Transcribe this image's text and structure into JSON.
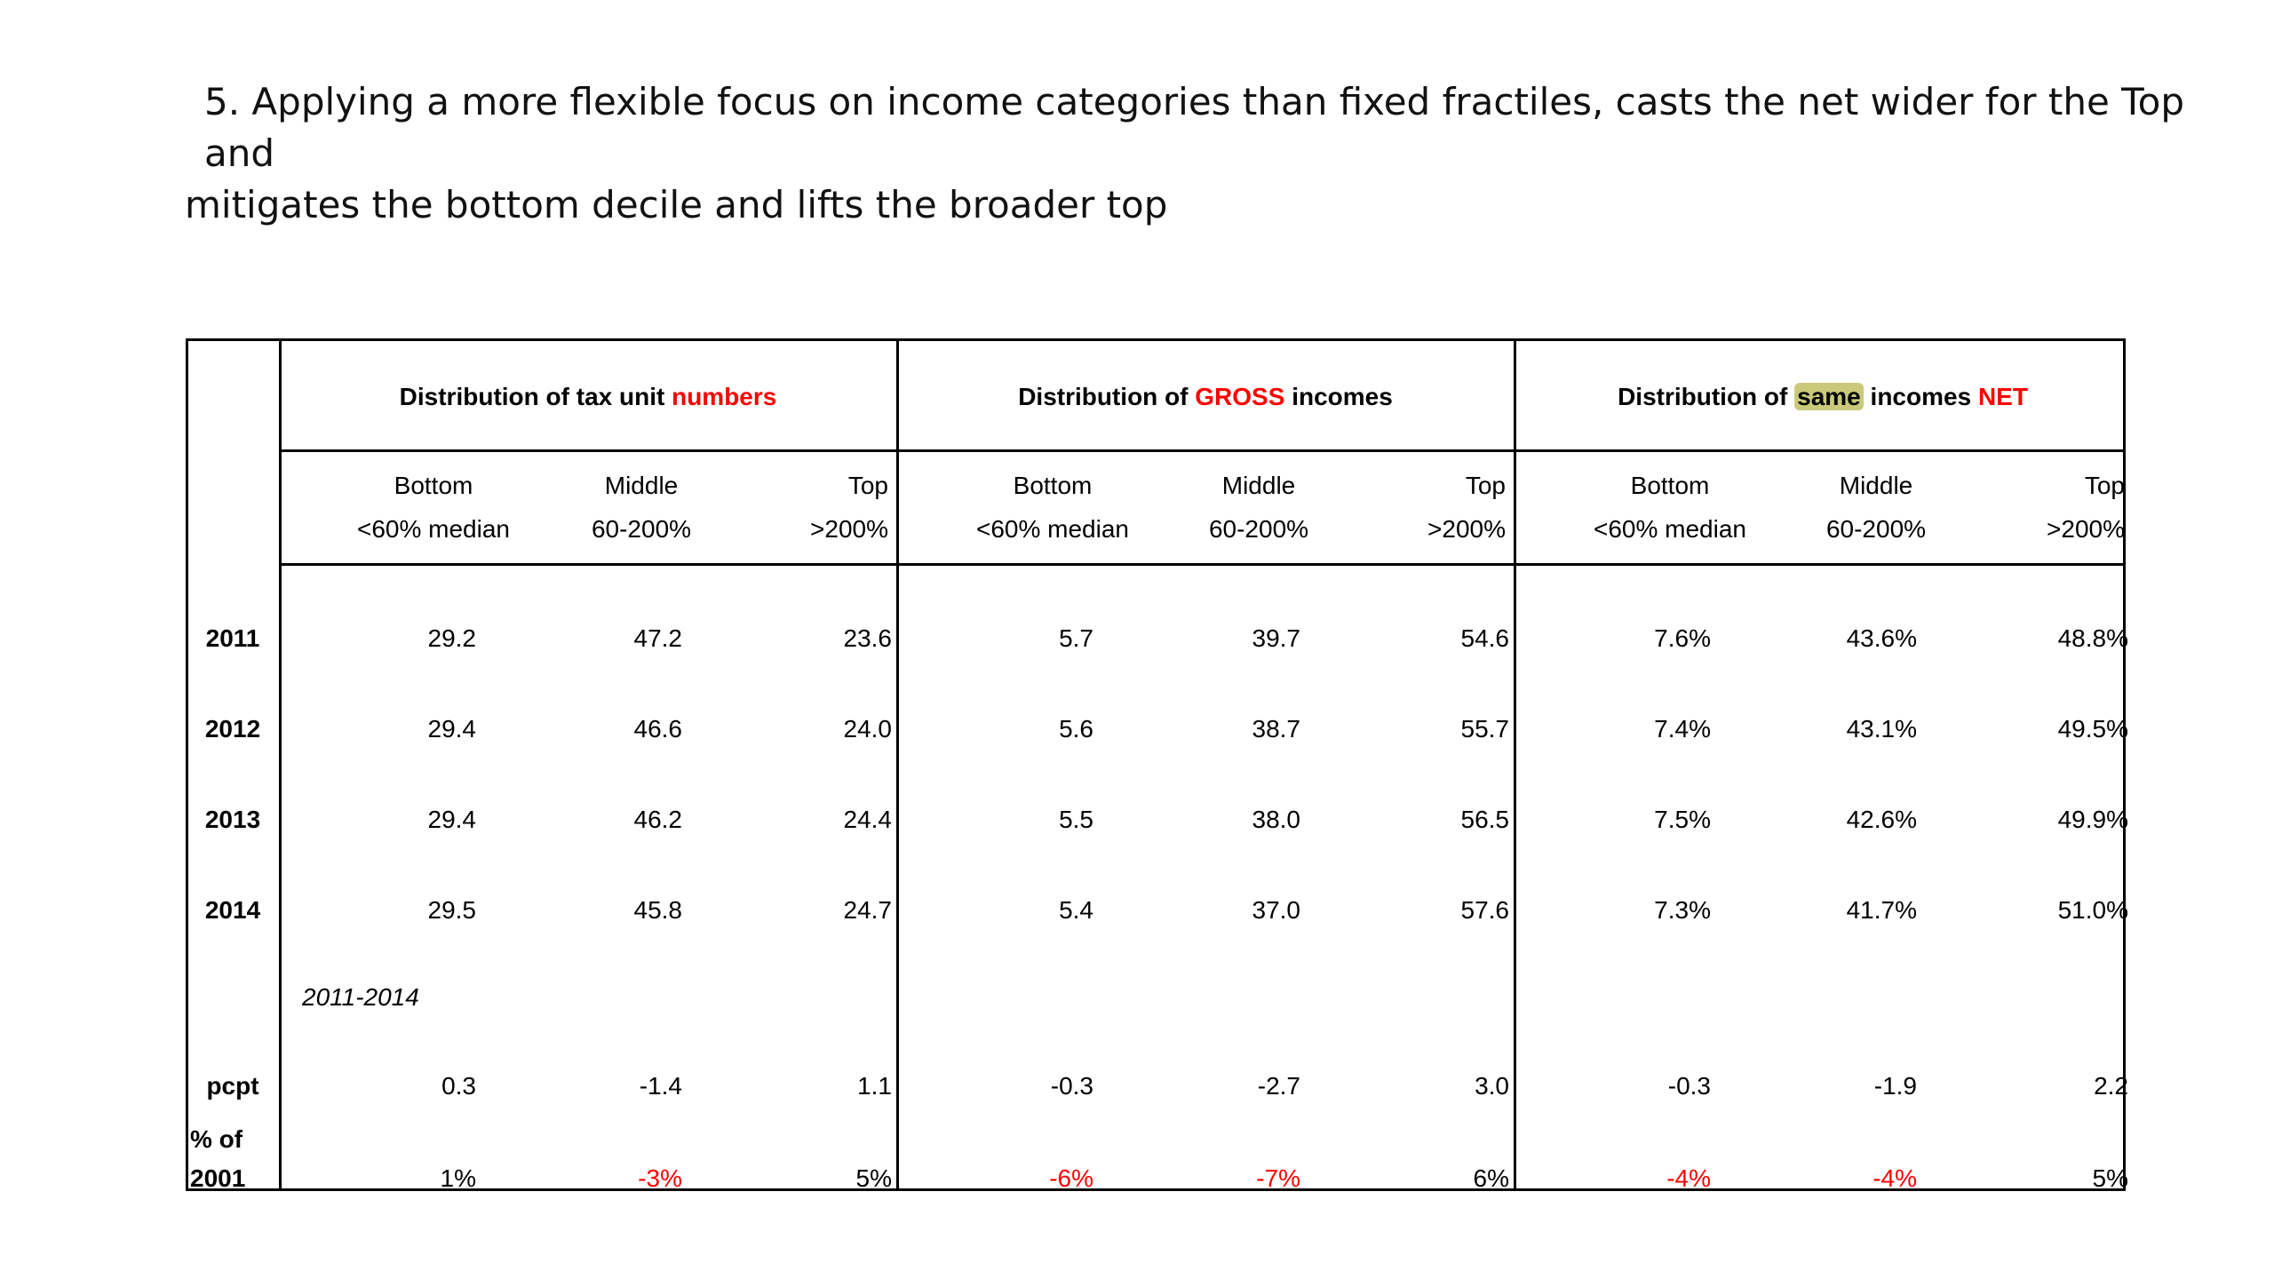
{
  "title": {
    "line1": "5. Applying a more flexible focus on income categories than fixed fractiles, casts the net wider for the Top and",
    "line2": "mitigates the bottom decile and lifts the broader top"
  },
  "groups": [
    {
      "prefix": "Distribution of tax unit ",
      "emph": "numbers",
      "suffix": ""
    },
    {
      "prefix": "Distribution of ",
      "emph": "GROSS",
      "suffix": " incomes"
    },
    {
      "prefix": "Distribution of ",
      "highlight": "same",
      "mid": " incomes ",
      "emph": "NET"
    }
  ],
  "subheaders": {
    "bottom": {
      "label": "Bottom",
      "range": "<60% median"
    },
    "middle": {
      "label": "Middle",
      "range": "60-200%"
    },
    "top": {
      "label": "Top",
      "range": ">200%"
    }
  },
  "rows": [
    {
      "label": "2011",
      "values": [
        "29.2",
        "47.2",
        "23.6",
        "5.7",
        "39.7",
        "54.6",
        "7.6%",
        "43.6%",
        "48.8%"
      ]
    },
    {
      "label": "2012",
      "values": [
        "29.4",
        "46.6",
        "24.0",
        "5.6",
        "38.7",
        "55.7",
        "7.4%",
        "43.1%",
        "49.5%"
      ]
    },
    {
      "label": "2013",
      "values": [
        "29.4",
        "46.2",
        "24.4",
        "5.5",
        "38.0",
        "56.5",
        "7.5%",
        "42.6%",
        "49.9%"
      ]
    },
    {
      "label": "2014",
      "values": [
        "29.5",
        "45.8",
        "24.7",
        "5.4",
        "37.0",
        "57.6",
        "7.3%",
        "41.7%",
        "51.0%"
      ]
    }
  ],
  "period_label": "2011-2014",
  "pcpt": {
    "label": "pcpt",
    "values": [
      "0.3",
      "-1.4",
      "1.1",
      "-0.3",
      "-2.7",
      "3.0",
      "-0.3",
      "-1.9",
      "2.2"
    ]
  },
  "pct_of": {
    "label_line1": "% of",
    "label_line2": "2001",
    "values": [
      "1%",
      "-3%",
      "5%",
      "-6%",
      "-7%",
      "6%",
      "-4%",
      "-4%",
      "5%"
    ],
    "negative_color": "#ff0000"
  },
  "colors": {
    "emphasis": "#ff0000",
    "highlight": "#c9c97a"
  }
}
